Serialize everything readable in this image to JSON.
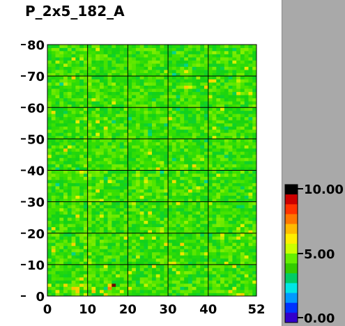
{
  "chart_data": {
    "type": "heatmap",
    "title": "P_2x5_182_A",
    "xlim": [
      0,
      52
    ],
    "ylim": [
      0,
      80
    ],
    "x_ticks": [
      "0",
      "10",
      "20",
      "30",
      "40",
      "52"
    ],
    "y_ticks": [
      "0",
      "10",
      "20",
      "30",
      "40",
      "50",
      "60",
      "70",
      "80"
    ],
    "grid": true,
    "n_cols": 52,
    "n_rows": 80,
    "value_range": [
      0.0,
      10.0
    ],
    "typical_value": 5.5,
    "colorbar": {
      "labels": [
        "10.00",
        "5.00",
        "0.00"
      ],
      "colors": [
        "#ffffff",
        "#3300cc",
        "#0033ff",
        "#0099ff",
        "#00e5e5",
        "#00cc66",
        "#33cc00",
        "#66ee00",
        "#ccff00",
        "#ffee00",
        "#ffbb00",
        "#ff7700",
        "#ff3300",
        "#cc0000",
        "#000000"
      ]
    }
  }
}
